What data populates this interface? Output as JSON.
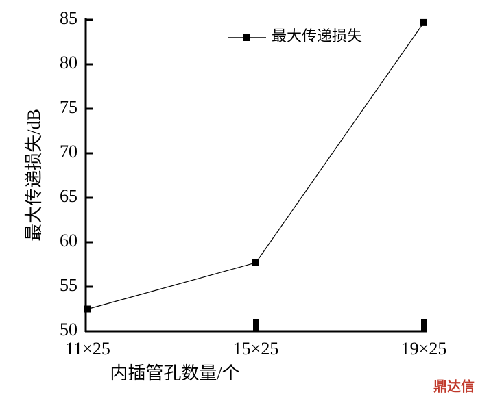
{
  "chart_data": {
    "type": "line",
    "x_label": "内插管孔数量/个",
    "y_label": "最大传递损失/dB",
    "categories": [
      "11×25",
      "15×25",
      "19×25"
    ],
    "series": [
      {
        "name": "最大传递损失",
        "color": "#000000",
        "values": [
          52.5,
          57.7,
          84.7
        ]
      }
    ],
    "ylim": [
      50,
      85
    ],
    "yticks": [
      50,
      55,
      60,
      65,
      70,
      75,
      80,
      85
    ],
    "grid": false,
    "legend": "upper center",
    "watermark": "鼎达信"
  }
}
